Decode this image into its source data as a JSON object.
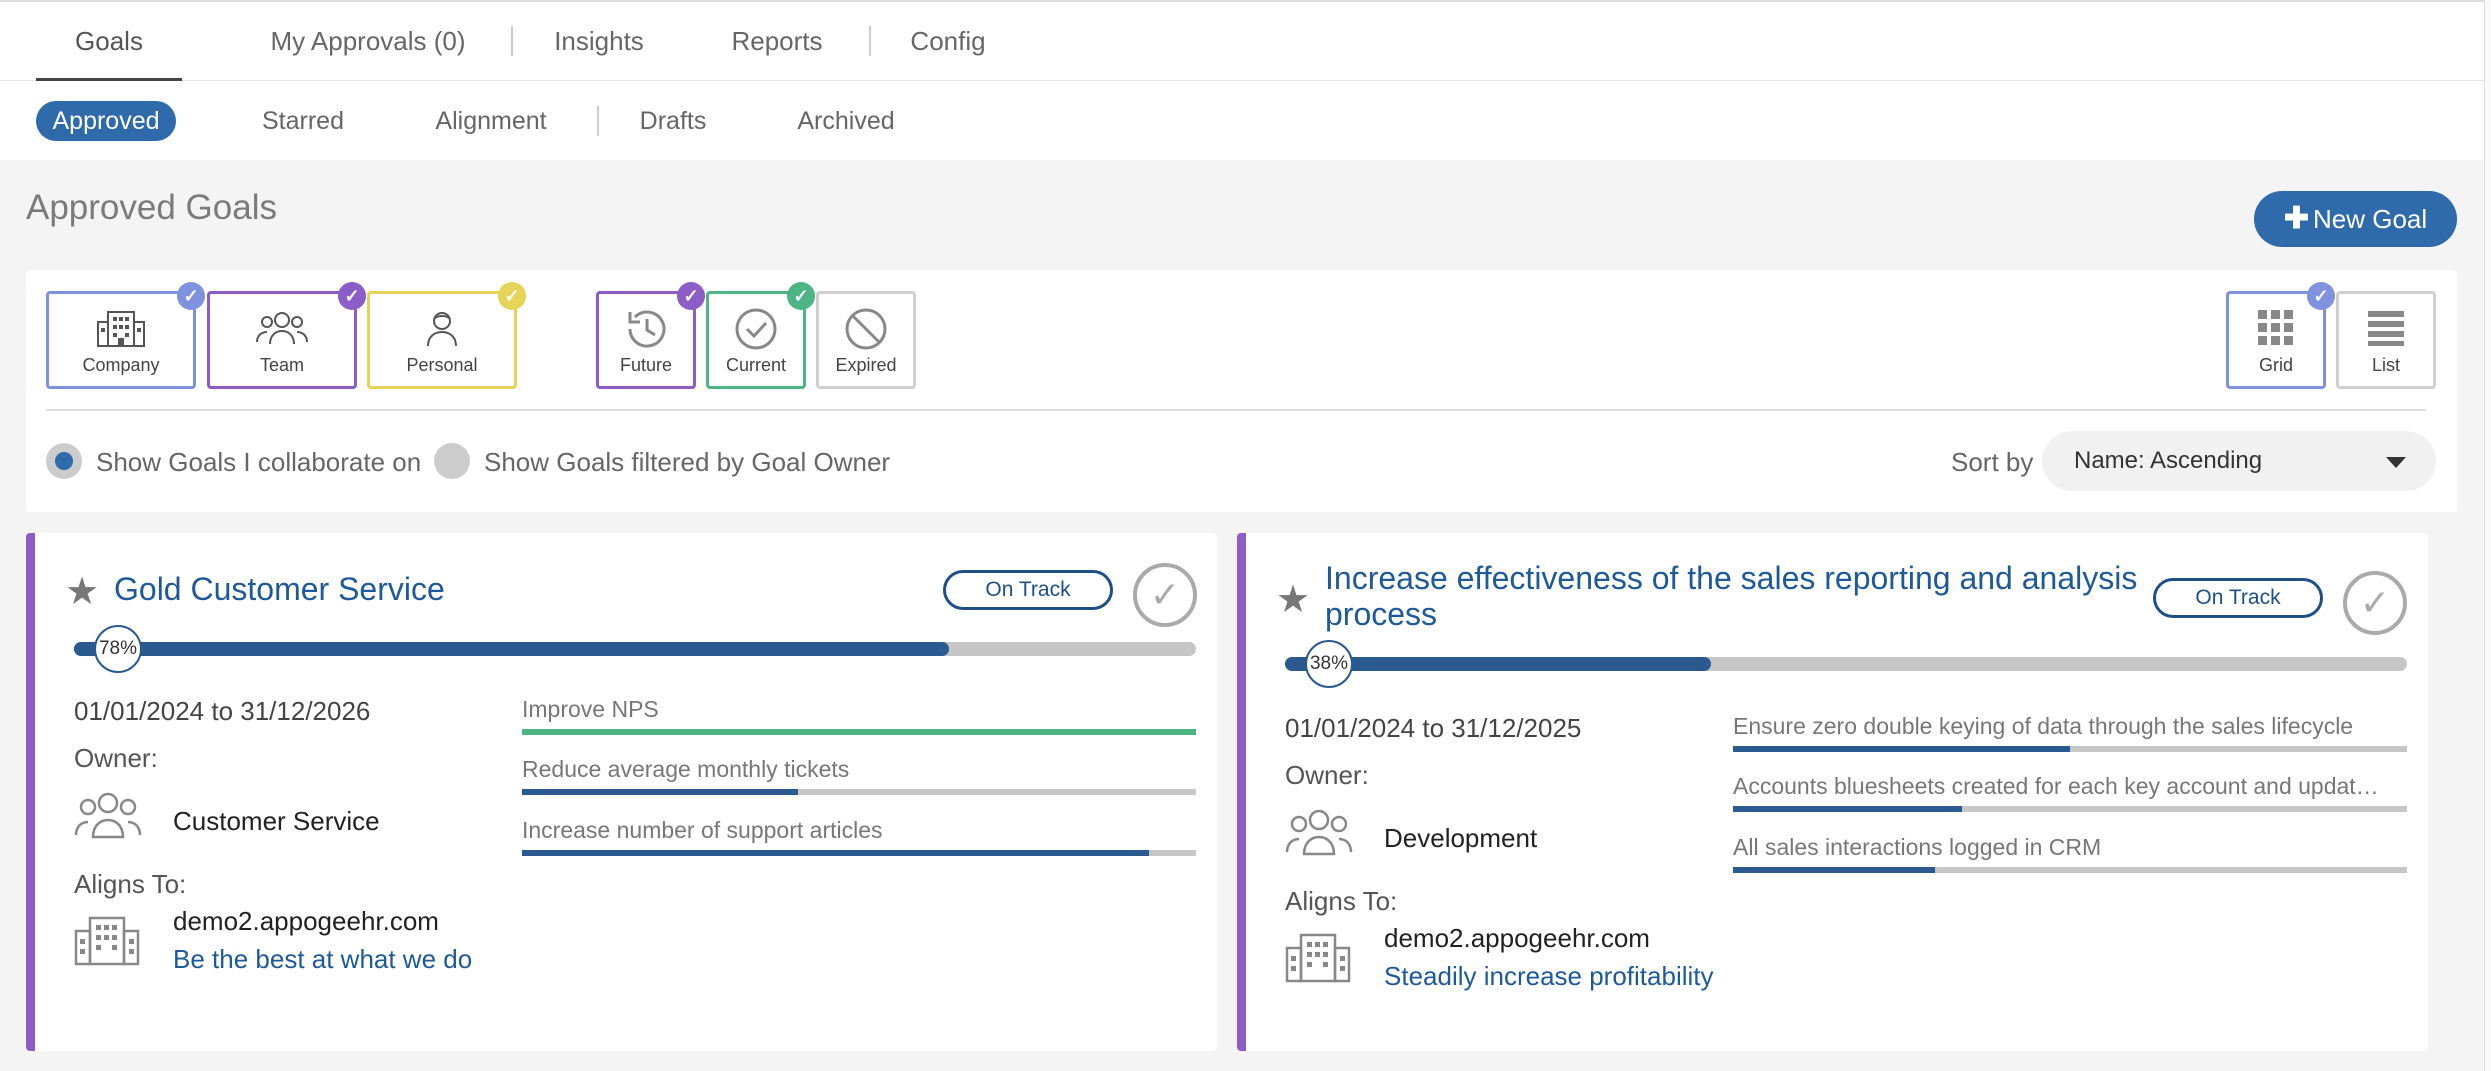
{
  "top_tabs": [
    {
      "label": "Goals"
    },
    {
      "label": "My Approvals (0)"
    },
    {
      "label": "Insights"
    },
    {
      "label": "Reports"
    },
    {
      "label": "Config"
    }
  ],
  "sub_tabs": [
    {
      "label": "Approved"
    },
    {
      "label": "Starred"
    },
    {
      "label": "Alignment"
    },
    {
      "label": "Drafts"
    },
    {
      "label": "Archived"
    }
  ],
  "page_title": "Approved Goals",
  "new_goal_label": "New Goal",
  "filters": {
    "type": [
      {
        "label": "Company",
        "icon": "building-icon",
        "checked": true,
        "color": "#7f92e0"
      },
      {
        "label": "Team",
        "icon": "team-icon",
        "checked": true,
        "color": "#8c5cc7"
      },
      {
        "label": "Personal",
        "icon": "person-icon",
        "checked": true,
        "color": "#e6d35a"
      }
    ],
    "time": [
      {
        "label": "Future",
        "icon": "history-icon",
        "checked": true,
        "color": "#8c5cc7"
      },
      {
        "label": "Current",
        "icon": "check-circle-icon",
        "checked": true,
        "color": "#4cb583"
      },
      {
        "label": "Expired",
        "icon": "ban-icon",
        "checked": false,
        "color": "#cccccc"
      }
    ],
    "view": [
      {
        "label": "Grid",
        "icon": "grid-icon",
        "checked": true,
        "color": "#7f92e0"
      },
      {
        "label": "List",
        "icon": "list-icon",
        "checked": false,
        "color": "#cccccc"
      }
    ],
    "radio_collaborate": "Show Goals I collaborate on",
    "radio_owner": "Show Goals filtered by Goal Owner",
    "sort_label": "Sort by",
    "sort_value": "Name: Ascending"
  },
  "goals": [
    {
      "title": "Gold Customer Service",
      "status": "On Track",
      "progress_label": "78%",
      "progress": 0.78,
      "dates": "01/01/2024 to 31/12/2026",
      "owner_label": "Owner:",
      "owner": "Customer Service",
      "aligns_label": "Aligns To:",
      "align_domain": "demo2.appogeehr.com",
      "align_goal": "Be the best at what we do",
      "key_results": [
        {
          "label": "Improve NPS",
          "progress": 1.0,
          "color": "#4cb583"
        },
        {
          "label": "Reduce average monthly tickets",
          "progress": 0.41,
          "color": "#2a5a8f"
        },
        {
          "label": "Increase number of support articles",
          "progress": 0.93,
          "color": "#2a5a8f"
        }
      ]
    },
    {
      "title": "Increase effectiveness of the sales reporting and analysis process",
      "status": "On Track",
      "progress_label": "38%",
      "progress": 0.38,
      "dates": "01/01/2024 to 31/12/2025",
      "owner_label": "Owner:",
      "owner": "Development",
      "aligns_label": "Aligns To:",
      "align_domain": "demo2.appogeehr.com",
      "align_goal": "Steadily increase profitability",
      "key_results": [
        {
          "label": "Ensure zero double keying of data through the sales lifecycle",
          "progress": 0.5,
          "color": "#2a5a8f"
        },
        {
          "label": "Accounts bluesheets created for each key account and updat…",
          "progress": 0.34,
          "color": "#2a5a8f"
        },
        {
          "label": "All sales interactions logged in CRM",
          "progress": 0.3,
          "color": "#2a5a8f"
        }
      ]
    }
  ]
}
